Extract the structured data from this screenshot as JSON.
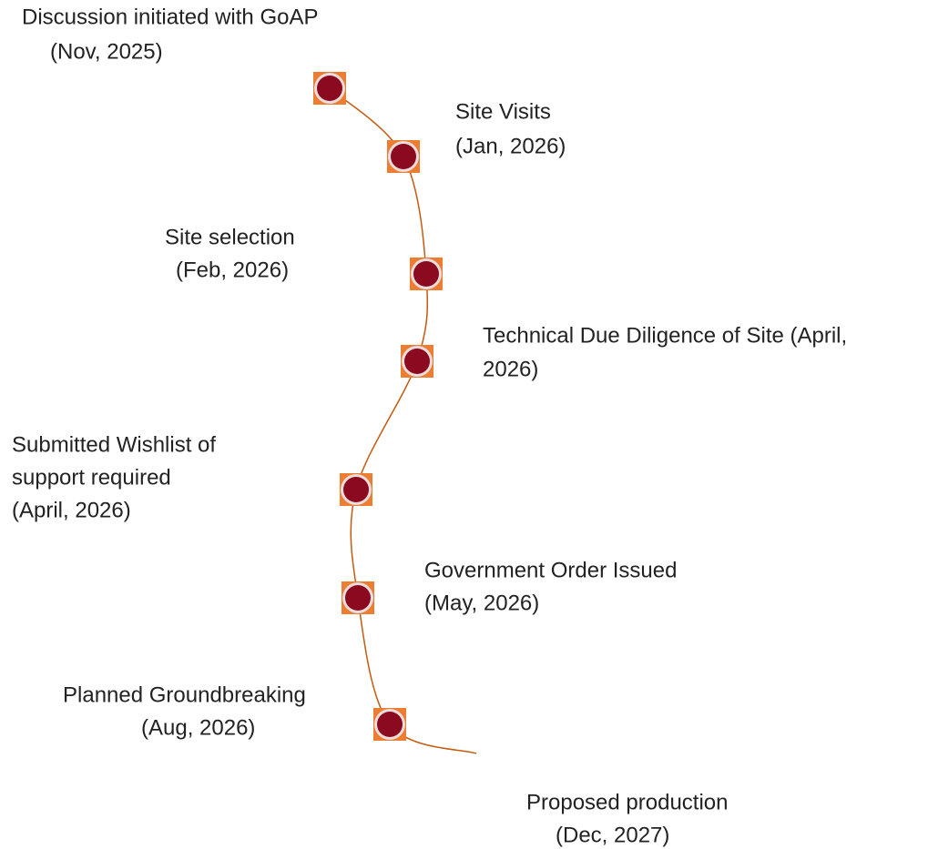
{
  "milestones": [
    {
      "lines": [
        "Discussion initiated with GoAP",
        "(Nov, 2025)"
      ]
    },
    {
      "lines": [
        "Site Visits",
        "(Jan, 2026)"
      ]
    },
    {
      "lines": [
        "Site selection",
        "(Feb, 2026)"
      ]
    },
    {
      "lines": [
        "Technical Due Diligence of Site (April,",
        "2026)"
      ]
    },
    {
      "lines": [
        "Submitted Wishlist of",
        "support required",
        "(April, 2026)"
      ]
    },
    {
      "lines": [
        "Government Order Issued",
        "(May, 2026)"
      ]
    },
    {
      "lines": [
        "Planned Groundbreaking",
        "(Aug, 2026)"
      ]
    },
    {
      "lines": [
        "Proposed production",
        "(Dec, 2027)"
      ]
    }
  ]
}
